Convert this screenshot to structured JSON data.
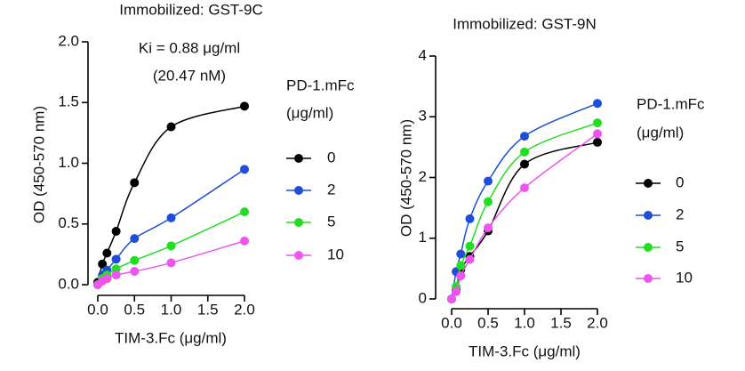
{
  "chart_data": [
    {
      "type": "scatter",
      "title": "Immobilized: GST-9C",
      "x_label": "TIM-3.Fc (μg/ml)",
      "y_label": "OD (450-570 nm)",
      "annotations": [
        "Ki = 0.88 μg/ml",
        "(20.47 nM)"
      ],
      "legend_title": [
        "PD-1.mFc",
        "(μg/ml)"
      ],
      "x": [
        0,
        0.0625,
        0.125,
        0.25,
        0.5,
        1,
        2
      ],
      "series": [
        {
          "name": "0",
          "color": "#000000",
          "values": [
            0.02,
            0.17,
            0.26,
            0.44,
            0.84,
            1.3,
            1.47
          ]
        },
        {
          "name": "2",
          "color": "#1f4fd8",
          "values": [
            0,
            0.08,
            0.12,
            0.21,
            0.38,
            0.55,
            0.95
          ]
        },
        {
          "name": "5",
          "color": "#22dd22",
          "values": [
            0,
            0.05,
            0.08,
            0.13,
            0.2,
            0.32,
            0.6
          ]
        },
        {
          "name": "10",
          "color": "#ee55ee",
          "values": [
            0,
            0.03,
            0.05,
            0.08,
            0.11,
            0.18,
            0.36
          ]
        }
      ],
      "xlim": [
        0,
        2
      ],
      "xticks": [
        {
          "value": 0,
          "label": "0.0"
        },
        {
          "value": 0.5,
          "label": "0.5"
        },
        {
          "value": 1,
          "label": "1.0"
        },
        {
          "value": 1.5,
          "label": "1.5"
        },
        {
          "value": 2,
          "label": "2.0"
        }
      ],
      "ylim": [
        0,
        2
      ],
      "yticks": [
        {
          "value": 0,
          "label": "0.0"
        },
        {
          "value": 0.5,
          "label": "0.5"
        },
        {
          "value": 1,
          "label": "1.0"
        },
        {
          "value": 1.5,
          "label": "1.5"
        },
        {
          "value": 2,
          "label": "2.0"
        }
      ]
    },
    {
      "type": "scatter",
      "title": "Immobilized: GST-9N",
      "x_label": "TIM-3.Fc (μg/ml)",
      "y_label": "OD (450-570 nm)",
      "legend_title": [
        "PD-1.mFc",
        "(μg/ml)"
      ],
      "x": [
        0,
        0.0625,
        0.125,
        0.25,
        0.5,
        1,
        2
      ],
      "series": [
        {
          "name": "0",
          "color": "#000000",
          "values": [
            0,
            0.15,
            0.48,
            0.7,
            1.12,
            2.22,
            2.58
          ]
        },
        {
          "name": "2",
          "color": "#1f4fd8",
          "values": [
            0,
            0.45,
            0.74,
            1.32,
            1.94,
            2.68,
            3.22
          ]
        },
        {
          "name": "5",
          "color": "#22dd22",
          "values": [
            0,
            0.2,
            0.55,
            0.87,
            1.6,
            2.42,
            2.9
          ]
        },
        {
          "name": "10",
          "color": "#ee55ee",
          "values": [
            0,
            0.12,
            0.38,
            0.65,
            1.17,
            1.83,
            2.72
          ]
        }
      ],
      "xlim": [
        0,
        2
      ],
      "xticks": [
        {
          "value": 0,
          "label": "0.0"
        },
        {
          "value": 0.5,
          "label": "0.5"
        },
        {
          "value": 1,
          "label": "1.0"
        },
        {
          "value": 1.5,
          "label": "1.5"
        },
        {
          "value": 2,
          "label": "2.0"
        }
      ],
      "ylim": [
        0,
        4
      ],
      "yticks": [
        0,
        1,
        2,
        3,
        4
      ]
    }
  ]
}
